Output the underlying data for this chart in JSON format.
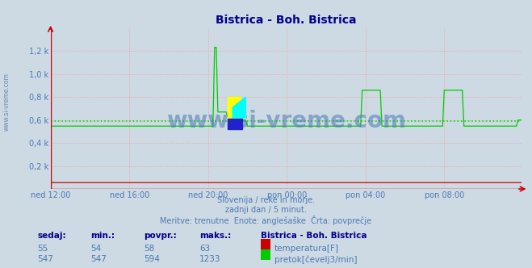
{
  "title": "Bistrica - Boh. Bistrica",
  "title_color": "#00008b",
  "fig_bg_color": "#cdd9e3",
  "plot_bg_color": "#cdd9e3",
  "watermark_main": "www.si-vreme.com",
  "watermark_side": "www.si-vreme.com",
  "watermark_color": "#4a7ab5",
  "watermark_alpha": 0.55,
  "subtitle1": "Slovenija / reke in morje.",
  "subtitle2": "zadnji dan / 5 minut.",
  "subtitle3": "Meritve: trenutne  Enote: anglešaške  Črta: povprečje",
  "subtitle_color": "#4a7ab5",
  "ylim": [
    0,
    1400
  ],
  "yticks": [
    0,
    200,
    400,
    600,
    800,
    1000,
    1200
  ],
  "ytick_labels": [
    "",
    "0,2 k",
    "0,4 k",
    "0,6 k",
    "0,8 k",
    "1,0 k",
    "1,2 k"
  ],
  "xtick_labels": [
    "ned 12:00",
    "ned 16:00",
    "ned 20:00",
    "pon 00:00",
    "pon 04:00",
    "pon 08:00"
  ],
  "xtick_positions": [
    0,
    48,
    96,
    144,
    192,
    240
  ],
  "total_points": 288,
  "avg_flow": 594,
  "grid_color": "#ff9999",
  "grid_linestyle": ":",
  "avg_line_color": "#00dd00",
  "temp_color": "#cc0000",
  "flow_color": "#00cc00",
  "axis_color": "#cc0000",
  "legend_title": "Bistrica - Boh. Bistrica",
  "legend_title_color": "#00008b",
  "table_headers": [
    "sedaj:",
    "min.:",
    "povpr.:",
    "maks.:"
  ],
  "temp_row": [
    55,
    54,
    58,
    63
  ],
  "flow_row": [
    547,
    547,
    594,
    1233
  ],
  "temp_label": "temperatura[F]",
  "flow_label": "pretok[čevelj3/min]",
  "table_color": "#4a7ab5",
  "table_bold_color": "#00008b",
  "temp_box_color": "#cc0000",
  "flow_box_color": "#00cc00"
}
